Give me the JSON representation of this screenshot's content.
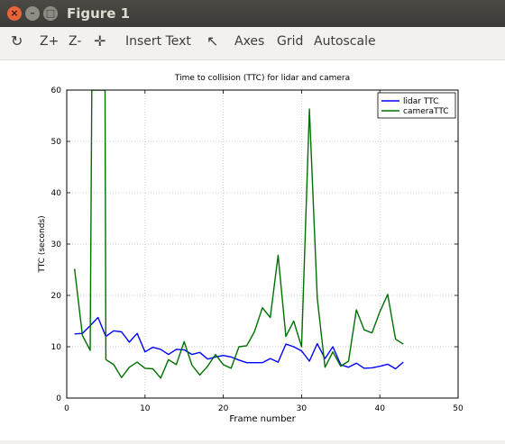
{
  "window": {
    "title": "Figure 1"
  },
  "toolbar": {
    "items": [
      {
        "name": "reset-view-button",
        "label": "↻",
        "icon": "refresh-icon"
      },
      {
        "name": "zoom-in-button",
        "label": "Z+"
      },
      {
        "name": "zoom-out-button",
        "label": "Z-"
      },
      {
        "name": "pan-button",
        "label": "✛",
        "icon": "move-arrows-icon"
      },
      {
        "name": "insert-text-button",
        "label": "Insert Text"
      },
      {
        "name": "pointer-button",
        "label": "↖",
        "icon": "pointer-icon"
      },
      {
        "name": "axes-button",
        "label": "Axes"
      },
      {
        "name": "grid-button",
        "label": "Grid"
      },
      {
        "name": "autoscale-button",
        "label": "Autoscale"
      }
    ]
  },
  "chart_data": {
    "type": "line",
    "title": "Time to collision (TTC) for lidar and camera",
    "xlabel": "Frame number",
    "ylabel": "TTC (seconds)",
    "xlim": [
      0,
      50
    ],
    "ylim": [
      0,
      60
    ],
    "xticks": [
      0,
      10,
      20,
      30,
      40,
      50
    ],
    "yticks": [
      0,
      10,
      20,
      30,
      40,
      50,
      60
    ],
    "grid": true,
    "legend": "top-right",
    "series": [
      {
        "name": "lidar TTC",
        "color": "#0000ff",
        "x": [
          1,
          2,
          3,
          4,
          5,
          6,
          7,
          8,
          9,
          10,
          11,
          12,
          13,
          14,
          15,
          16,
          17,
          18,
          19,
          20,
          21,
          22,
          23,
          24,
          25,
          26,
          27,
          28,
          29,
          30,
          31,
          32,
          33,
          34,
          35,
          36,
          37,
          38,
          39,
          40,
          41,
          42,
          43
        ],
        "y": [
          12.5,
          12.6,
          14.1,
          15.7,
          12.0,
          13.1,
          12.9,
          10.9,
          12.6,
          9.0,
          9.9,
          9.5,
          8.5,
          9.5,
          9.4,
          8.5,
          8.9,
          7.6,
          8.0,
          8.3,
          8.0,
          7.4,
          6.9,
          6.9,
          6.9,
          7.7,
          7.0,
          10.5,
          10.0,
          9.2,
          7.2,
          10.6,
          7.7,
          10.0,
          6.5,
          6.0,
          6.8,
          5.8,
          5.9,
          6.2,
          6.6,
          5.7,
          7.0
        ]
      },
      {
        "name": "cameraTTC",
        "color": "#007000",
        "x": [
          1,
          2,
          3,
          3.2,
          3.8,
          4.9,
          5.0,
          6,
          7,
          8,
          9,
          10,
          11,
          12,
          13,
          14,
          15,
          16,
          17,
          18,
          19,
          20,
          21,
          22,
          23,
          24,
          25,
          26,
          27,
          28,
          29,
          30,
          31,
          32,
          33,
          34,
          35,
          36,
          37,
          38,
          39,
          40,
          41,
          42,
          43
        ],
        "y": [
          25.2,
          12.2,
          9.3,
          60,
          60,
          60,
          7.5,
          6.5,
          4.0,
          6.0,
          7.0,
          5.8,
          5.7,
          3.9,
          7.5,
          6.5,
          11.0,
          6.4,
          4.5,
          6.2,
          8.5,
          6.5,
          5.8,
          10.0,
          10.2,
          13.0,
          17.6,
          15.7,
          27.8,
          12.0,
          15.0,
          10.0,
          56.3,
          19.5,
          6.0,
          9.0,
          6.2,
          7.2,
          17.2,
          13.3,
          12.7,
          16.8,
          20.2,
          11.5,
          10.5
        ]
      }
    ]
  }
}
